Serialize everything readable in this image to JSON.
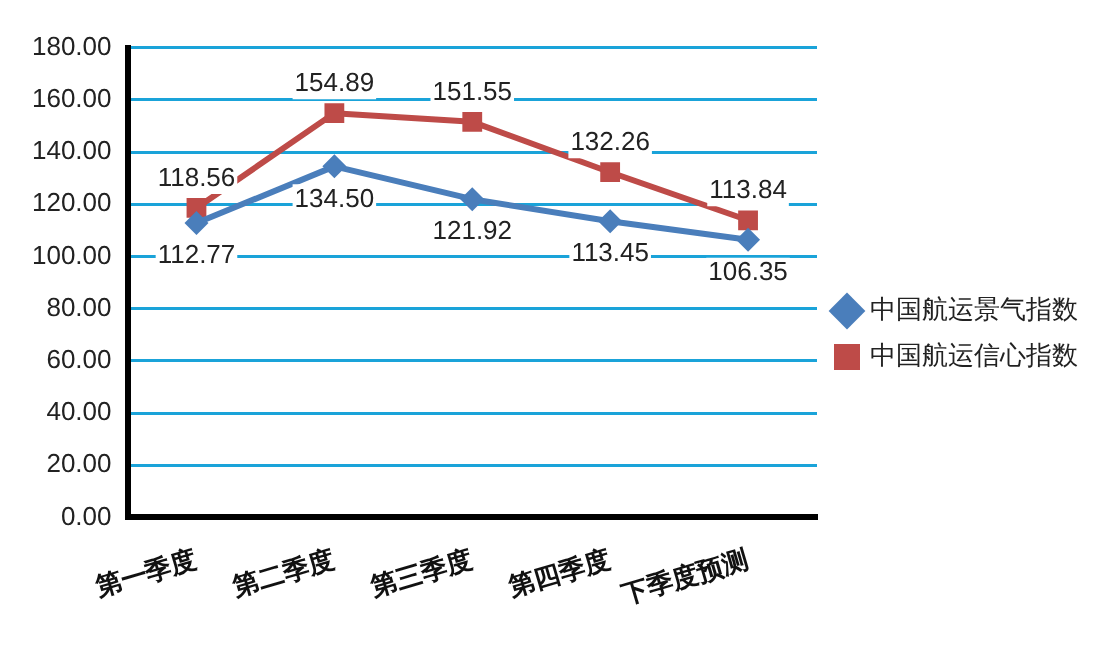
{
  "chart_data": {
    "type": "line",
    "categories": [
      "第一季度",
      "第二季度",
      "第三季度",
      "第四季度",
      "下季度预测"
    ],
    "series": [
      {
        "name": "中国航运景气指数",
        "color": "#4a7ebb",
        "marker": "diamond",
        "values": [
          112.77,
          134.5,
          121.92,
          113.45,
          106.35
        ],
        "value_labels": [
          "112.77",
          "134.50",
          "121.92",
          "113.45",
          "106.35"
        ]
      },
      {
        "name": "中国航运信心指数",
        "color": "#be4b48",
        "marker": "square",
        "values": [
          118.56,
          154.89,
          151.55,
          132.26,
          113.84
        ],
        "value_labels": [
          "118.56",
          "154.89",
          "151.55",
          "132.26",
          "113.84"
        ]
      }
    ],
    "ylim": [
      0,
      180
    ],
    "yticks": [
      {
        "value": 0,
        "label": "0.00"
      },
      {
        "value": 20,
        "label": "20.00"
      },
      {
        "value": 40,
        "label": "40.00"
      },
      {
        "value": 60,
        "label": "60.00"
      },
      {
        "value": 80,
        "label": "80.00"
      },
      {
        "value": 100,
        "label": "100.00"
      },
      {
        "value": 120,
        "label": "120.00"
      },
      {
        "value": 140,
        "label": "140.00"
      },
      {
        "value": 160,
        "label": "160.00"
      },
      {
        "value": 180,
        "label": "180.00"
      }
    ],
    "grid": "y",
    "legend": "right",
    "line_style": "solid"
  }
}
